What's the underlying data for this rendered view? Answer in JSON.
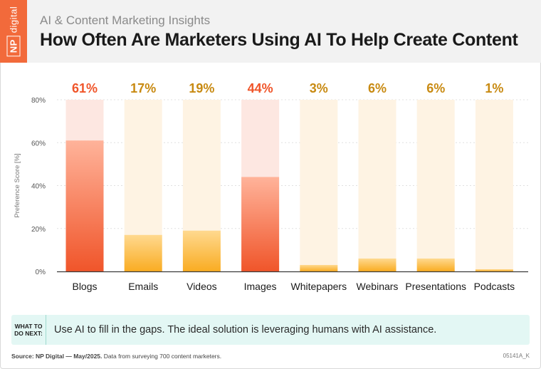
{
  "header": {
    "logo_box": "NP",
    "logo_word": "digital",
    "kicker": "AI & Content Marketing Insights",
    "title": "How Often Are Marketers Using AI To Help Create Content"
  },
  "chart_data": {
    "type": "bar",
    "title": "",
    "xlabel": "",
    "ylabel": "Preference Score [%]",
    "ylim": [
      0,
      80
    ],
    "yticks": [
      0,
      20,
      40,
      60,
      80
    ],
    "ytick_labels": [
      "0%",
      "20%",
      "40%",
      "60%",
      "80%"
    ],
    "categories": [
      "Blogs",
      "Emails",
      "Videos",
      "Images",
      "Whitepapers",
      "Webinars",
      "Presentations",
      "Podcasts"
    ],
    "values": [
      61,
      17,
      19,
      44,
      3,
      6,
      6,
      1
    ],
    "value_labels": [
      "61%",
      "17%",
      "19%",
      "44%",
      "3%",
      "6%",
      "6%",
      "1%"
    ],
    "grid": true,
    "colors": {
      "high_bar_top": "#ffb39a",
      "high_bar_bottom": "#f0552a",
      "high_track": "#fde7e1",
      "high_label": "#f0552a",
      "low_bar_top": "#ffd98f",
      "low_bar_bottom": "#f9ac22",
      "low_track": "#fef3e3",
      "low_label": "#c88a12"
    }
  },
  "next_step": {
    "label": "WHAT TO DO NEXT:",
    "text": "Use AI to fill in the gaps. The ideal solution is leveraging humans with AI assistance."
  },
  "footer": {
    "source_label": "Source: NP Digital — May/2025.",
    "source_text": "Data from surveying 700 content marketers.",
    "code": "05141A_K"
  }
}
